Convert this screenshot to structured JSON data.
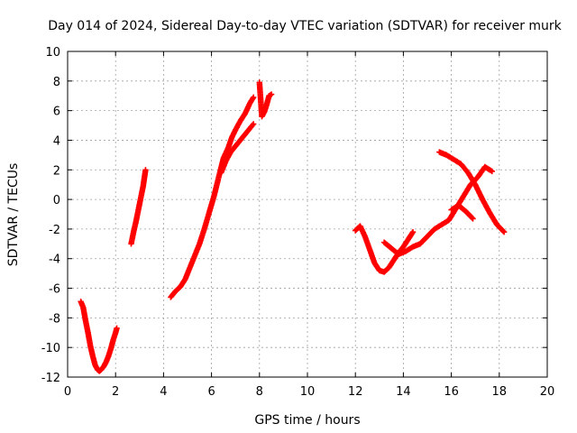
{
  "chart_data": {
    "type": "scatter",
    "title": "Day 014 of 2024, Sidereal Day-to-day VTEC variation (SDTVAR) for receiver murk",
    "xlabel": "GPS time / hours",
    "ylabel": "SDTVAR / TECUs",
    "xlim": [
      0,
      20
    ],
    "ylim": [
      -12,
      10
    ],
    "x_ticks": [
      "0",
      "2",
      "4",
      "6",
      "8",
      "10",
      "12",
      "14",
      "16",
      "18",
      "20"
    ],
    "y_ticks": [
      "-12",
      "-10",
      "-8",
      "-6",
      "-4",
      "-2",
      "0",
      "2",
      "4",
      "6",
      "8",
      "10"
    ],
    "grid": true,
    "marker": "plus",
    "color": "#ff0000",
    "series": [
      {
        "x": [
          0.55,
          0.65,
          0.75,
          0.85,
          0.95,
          1.05,
          1.15,
          1.25,
          1.32,
          1.4,
          1.5,
          1.6,
          1.7,
          1.8,
          1.9,
          2.0,
          2.05
        ],
        "y": [
          -6.9,
          -7.3,
          -8.2,
          -9.0,
          -9.9,
          -10.6,
          -11.2,
          -11.5,
          -11.6,
          -11.5,
          -11.3,
          -11.0,
          -10.6,
          -10.1,
          -9.5,
          -9.0,
          -8.7
        ]
      },
      {
        "x": [
          2.65,
          2.75,
          2.85,
          2.95,
          3.05,
          3.15,
          3.25
        ],
        "y": [
          -3.0,
          -2.2,
          -1.5,
          -0.7,
          0.1,
          0.9,
          2.0
        ]
      },
      {
        "x": [
          4.3,
          4.5,
          4.7,
          4.9,
          5.1,
          5.3,
          5.5,
          5.7,
          5.9,
          6.1,
          6.3,
          6.5,
          6.7,
          6.85,
          7.0,
          7.2,
          7.4,
          7.6,
          7.75
        ],
        "y": [
          -6.6,
          -6.2,
          -5.9,
          -5.4,
          -4.6,
          -3.8,
          -3.0,
          -2.0,
          -0.9,
          0.2,
          1.5,
          2.8,
          3.5,
          4.2,
          4.7,
          5.3,
          5.8,
          6.5,
          6.9
        ]
      },
      {
        "x": [
          6.4,
          6.6,
          6.8,
          7.0,
          7.2,
          7.4,
          7.6,
          7.75
        ],
        "y": [
          1.8,
          2.6,
          3.2,
          3.6,
          4.0,
          4.4,
          4.8,
          5.1
        ]
      },
      {
        "x": [
          8.0,
          8.1,
          8.2,
          8.3,
          8.4,
          8.5
        ],
        "y": [
          7.9,
          5.6,
          5.9,
          6.4,
          7.0,
          7.1
        ]
      },
      {
        "x": [
          12.0,
          12.2,
          12.4,
          12.6,
          12.8,
          13.0,
          13.2,
          13.4,
          13.6,
          13.8,
          14.0,
          14.2,
          14.4
        ],
        "y": [
          -2.1,
          -1.8,
          -2.5,
          -3.4,
          -4.3,
          -4.8,
          -4.9,
          -4.6,
          -4.1,
          -3.6,
          -3.2,
          -2.7,
          -2.2
        ]
      },
      {
        "x": [
          13.2,
          13.5,
          13.8,
          14.1,
          14.4,
          14.7,
          15.0,
          15.3,
          15.6,
          15.9,
          16.2,
          16.5,
          16.8,
          17.1,
          17.4,
          17.7
        ],
        "y": [
          -2.9,
          -3.3,
          -3.7,
          -3.5,
          -3.2,
          -3.0,
          -2.5,
          -2.0,
          -1.7,
          -1.4,
          -0.6,
          0.2,
          1.0,
          1.5,
          2.2,
          1.9
        ]
      },
      {
        "x": [
          15.5,
          15.8,
          16.1,
          16.4,
          16.7,
          17.0,
          17.3,
          17.6,
          17.9,
          18.2
        ],
        "y": [
          3.2,
          3.0,
          2.7,
          2.4,
          1.8,
          1.0,
          0.0,
          -0.9,
          -1.7,
          -2.2
        ]
      },
      {
        "x": [
          16.0,
          16.3,
          16.6,
          16.9
        ],
        "y": [
          -0.7,
          -0.4,
          -0.8,
          -1.3
        ]
      }
    ]
  }
}
